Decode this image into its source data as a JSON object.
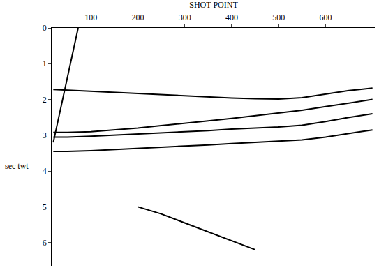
{
  "chart_data": {
    "type": "line",
    "x_label": "SHOT POINT",
    "y_label": "sec twt",
    "xlim": [
      18,
      705
    ],
    "xticks": [
      100,
      200,
      300,
      400,
      500,
      600
    ],
    "ylim": [
      0,
      6.65
    ],
    "yticks": [
      0,
      1,
      2,
      3,
      4,
      5,
      6
    ],
    "grid": false,
    "color": "#000000",
    "x": [
      20,
      50,
      100,
      150,
      200,
      250,
      300,
      350,
      400,
      450,
      500,
      550,
      600,
      650,
      700
    ],
    "series": [
      {
        "values": [
          1.72,
          1.74,
          1.77,
          1.8,
          1.83,
          1.86,
          1.9,
          1.93,
          1.96,
          1.98,
          1.99,
          1.95,
          1.85,
          1.75,
          1.68
        ]
      },
      {
        "values": [
          2.92,
          2.92,
          2.9,
          2.85,
          2.8,
          2.73,
          2.67,
          2.6,
          2.53,
          2.45,
          2.38,
          2.3,
          2.2,
          2.1,
          2.0
        ]
      },
      {
        "values": [
          3.05,
          3.05,
          3.03,
          3.0,
          2.97,
          2.93,
          2.9,
          2.87,
          2.83,
          2.8,
          2.77,
          2.72,
          2.62,
          2.5,
          2.4
        ]
      },
      {
        "values": [
          3.45,
          3.45,
          3.43,
          3.4,
          3.37,
          3.33,
          3.3,
          3.27,
          3.23,
          3.2,
          3.17,
          3.13,
          3.05,
          2.95,
          2.85
        ]
      },
      {
        "values": [
          null,
          null,
          null,
          null,
          5.0,
          5.2,
          5.45,
          5.7,
          5.95,
          6.2,
          null,
          null,
          null,
          null,
          null
        ]
      },
      {
        "x": [
          73,
          20
        ],
        "values": [
          0,
          3.2
        ]
      }
    ]
  }
}
